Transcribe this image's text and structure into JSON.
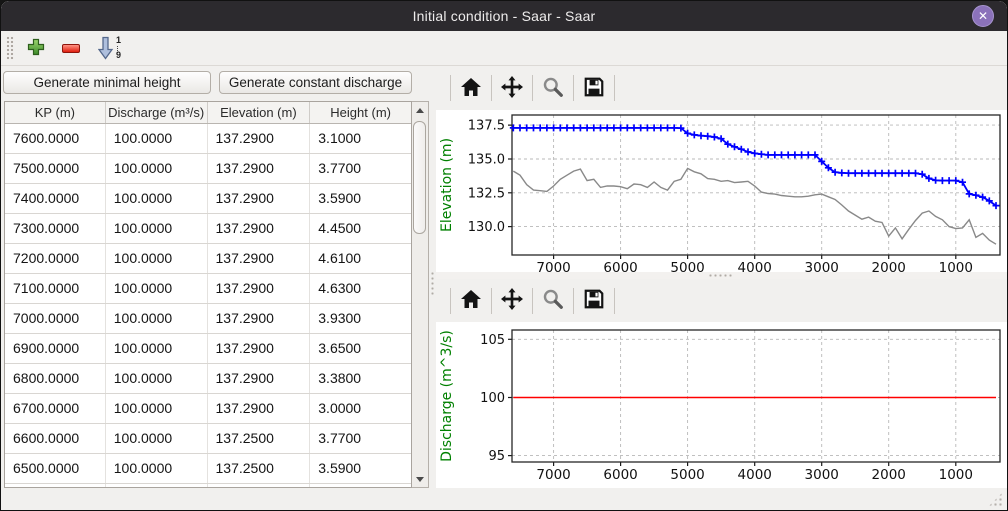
{
  "window": {
    "title": "Initial condition - Saar - Saar",
    "close_glyph": "✕"
  },
  "main_toolbar": {
    "add_icon": "plus-icon",
    "remove_icon": "minus-icon",
    "sort_icon": "sort-descending-1-9-icon",
    "sort_top": "1",
    "sort_bottom": "9"
  },
  "left_panel": {
    "buttons": [
      {
        "label": "Generate minimal height"
      },
      {
        "label": "Generate constant discharge"
      }
    ],
    "table": {
      "columns": [
        "KP (m)",
        "Discharge (m³/s)",
        "Elevation (m)",
        "Height (m)"
      ],
      "rows": [
        [
          "7600.0000",
          "100.0000",
          "137.2900",
          "3.1000"
        ],
        [
          "7500.0000",
          "100.0000",
          "137.2900",
          "3.7700"
        ],
        [
          "7400.0000",
          "100.0000",
          "137.2900",
          "3.5900"
        ],
        [
          "7300.0000",
          "100.0000",
          "137.2900",
          "4.4500"
        ],
        [
          "7200.0000",
          "100.0000",
          "137.2900",
          "4.6100"
        ],
        [
          "7100.0000",
          "100.0000",
          "137.2900",
          "4.6300"
        ],
        [
          "7000.0000",
          "100.0000",
          "137.2900",
          "3.9300"
        ],
        [
          "6900.0000",
          "100.0000",
          "137.2900",
          "3.6500"
        ],
        [
          "6800.0000",
          "100.0000",
          "137.2900",
          "3.3800"
        ],
        [
          "6700.0000",
          "100.0000",
          "137.2900",
          "3.0000"
        ],
        [
          "6600.0000",
          "100.0000",
          "137.2500",
          "3.7700"
        ],
        [
          "6500.0000",
          "100.0000",
          "137.2500",
          "3.5900"
        ]
      ]
    }
  },
  "right_panel": {
    "plot_toolbar_icons": [
      "home-icon",
      "move-icon",
      "magnifier-icon",
      "save-icon"
    ]
  },
  "colors": {
    "water_level_blue": "#0000ff",
    "bed_gray": "#898989",
    "discharge_red": "#ff0000",
    "axis_label_green": "#008000",
    "titlebar": "#2c2a2e",
    "close_button": "#8b72ba"
  },
  "chart_data": [
    {
      "type": "line",
      "title": "",
      "xlabel": "",
      "ylabel": "Elevation (m)",
      "x_reversed": true,
      "xlim": [
        7620,
        340
      ],
      "ylim": [
        127.9,
        138.25
      ],
      "xticks": [
        7000,
        6000,
        5000,
        4000,
        3000,
        2000,
        1000
      ],
      "xtick_labels": [
        "7000",
        "6000",
        "5000",
        "4000",
        "3000",
        "2000",
        "1000"
      ],
      "yticks": [
        130.0,
        132.5,
        135.0,
        137.5
      ],
      "ytick_labels": [
        "130.0",
        "132.5",
        "135.0",
        "137.5"
      ],
      "grid": true,
      "legend": false,
      "series": [
        {
          "name": "water-level-elevation",
          "color": "#0000ff",
          "marker": "plus",
          "width": 1.8,
          "points": [
            [
              7600,
              137.3
            ],
            [
              7500,
              137.3
            ],
            [
              7400,
              137.3
            ],
            [
              7300,
              137.3
            ],
            [
              7200,
              137.3
            ],
            [
              7100,
              137.3
            ],
            [
              7000,
              137.3
            ],
            [
              6900,
              137.3
            ],
            [
              6800,
              137.3
            ],
            [
              6700,
              137.3
            ],
            [
              6600,
              137.3
            ],
            [
              6500,
              137.3
            ],
            [
              6400,
              137.3
            ],
            [
              6300,
              137.3
            ],
            [
              6200,
              137.3
            ],
            [
              6100,
              137.3
            ],
            [
              6000,
              137.3
            ],
            [
              5900,
              137.3
            ],
            [
              5800,
              137.3
            ],
            [
              5700,
              137.3
            ],
            [
              5600,
              137.3
            ],
            [
              5500,
              137.3
            ],
            [
              5400,
              137.3
            ],
            [
              5300,
              137.3
            ],
            [
              5200,
              137.3
            ],
            [
              5100,
              137.28
            ],
            [
              5000,
              136.9
            ],
            [
              4900,
              136.78
            ],
            [
              4800,
              136.72
            ],
            [
              4700,
              136.68
            ],
            [
              4600,
              136.62
            ],
            [
              4500,
              136.5
            ],
            [
              4400,
              136.1
            ],
            [
              4300,
              135.9
            ],
            [
              4200,
              135.72
            ],
            [
              4100,
              135.52
            ],
            [
              4000,
              135.42
            ],
            [
              3900,
              135.35
            ],
            [
              3800,
              135.3
            ],
            [
              3700,
              135.3
            ],
            [
              3600,
              135.3
            ],
            [
              3500,
              135.3
            ],
            [
              3400,
              135.3
            ],
            [
              3300,
              135.3
            ],
            [
              3200,
              135.3
            ],
            [
              3100,
              135.3
            ],
            [
              3000,
              134.82
            ],
            [
              2900,
              134.35
            ],
            [
              2800,
              134.02
            ],
            [
              2700,
              133.97
            ],
            [
              2600,
              133.95
            ],
            [
              2500,
              133.95
            ],
            [
              2400,
              133.95
            ],
            [
              2300,
              133.95
            ],
            [
              2200,
              133.95
            ],
            [
              2100,
              133.95
            ],
            [
              2000,
              133.95
            ],
            [
              1900,
              133.95
            ],
            [
              1800,
              133.95
            ],
            [
              1700,
              133.95
            ],
            [
              1600,
              133.95
            ],
            [
              1500,
              133.87
            ],
            [
              1400,
              133.56
            ],
            [
              1300,
              133.42
            ],
            [
              1200,
              133.4
            ],
            [
              1100,
              133.4
            ],
            [
              1000,
              133.4
            ],
            [
              900,
              133.28
            ],
            [
              800,
              132.42
            ],
            [
              700,
              132.32
            ],
            [
              600,
              132.18
            ],
            [
              500,
              131.9
            ],
            [
              400,
              131.55
            ]
          ]
        },
        {
          "name": "bed-elevation",
          "color": "#898989",
          "marker": null,
          "width": 1.4,
          "points": [
            [
              7600,
              134.1
            ],
            [
              7500,
              133.8
            ],
            [
              7400,
              133.1
            ],
            [
              7300,
              132.7
            ],
            [
              7200,
              132.65
            ],
            [
              7100,
              132.6
            ],
            [
              7000,
              133.0
            ],
            [
              6900,
              133.5
            ],
            [
              6800,
              133.8
            ],
            [
              6700,
              134.1
            ],
            [
              6600,
              134.25
            ],
            [
              6500,
              133.4
            ],
            [
              6400,
              133.5
            ],
            [
              6300,
              132.9
            ],
            [
              6200,
              133.0
            ],
            [
              6100,
              133.0
            ],
            [
              6000,
              132.95
            ],
            [
              5900,
              132.8
            ],
            [
              5800,
              133.15
            ],
            [
              5700,
              133.1
            ],
            [
              5600,
              132.9
            ],
            [
              5500,
              133.3
            ],
            [
              5400,
              132.9
            ],
            [
              5300,
              132.7
            ],
            [
              5200,
              133.35
            ],
            [
              5100,
              133.5
            ],
            [
              5000,
              134.3
            ],
            [
              4900,
              134.05
            ],
            [
              4800,
              133.9
            ],
            [
              4700,
              133.55
            ],
            [
              4600,
              133.5
            ],
            [
              4500,
              133.35
            ],
            [
              4400,
              133.4
            ],
            [
              4300,
              133.25
            ],
            [
              4200,
              133.3
            ],
            [
              4100,
              133.35
            ],
            [
              4000,
              133.0
            ],
            [
              3900,
              132.55
            ],
            [
              3800,
              132.45
            ],
            [
              3700,
              132.4
            ],
            [
              3600,
              132.3
            ],
            [
              3500,
              132.25
            ],
            [
              3400,
              132.2
            ],
            [
              3300,
              132.2
            ],
            [
              3200,
              132.25
            ],
            [
              3100,
              132.35
            ],
            [
              3000,
              132.4
            ],
            [
              2900,
              132.2
            ],
            [
              2800,
              132.0
            ],
            [
              2700,
              131.6
            ],
            [
              2600,
              131.15
            ],
            [
              2500,
              130.85
            ],
            [
              2400,
              130.55
            ],
            [
              2300,
              130.7
            ],
            [
              2200,
              130.4
            ],
            [
              2100,
              130.3
            ],
            [
              2000,
              129.3
            ],
            [
              1900,
              129.9
            ],
            [
              1800,
              129.1
            ],
            [
              1700,
              129.8
            ],
            [
              1600,
              130.45
            ],
            [
              1500,
              131.0
            ],
            [
              1400,
              131.15
            ],
            [
              1300,
              130.75
            ],
            [
              1200,
              130.5
            ],
            [
              1100,
              130.0
            ],
            [
              1000,
              129.85
            ],
            [
              900,
              129.9
            ],
            [
              800,
              130.5
            ],
            [
              700,
              129.2
            ],
            [
              600,
              129.5
            ],
            [
              500,
              129.0
            ],
            [
              400,
              128.7
            ]
          ]
        }
      ]
    },
    {
      "type": "line",
      "title": "",
      "xlabel": "",
      "ylabel": "Discharge (m^3/s)",
      "x_reversed": true,
      "xlim": [
        7620,
        340
      ],
      "ylim": [
        94.45,
        105.8
      ],
      "xticks": [
        7000,
        6000,
        5000,
        4000,
        3000,
        2000,
        1000
      ],
      "xtick_labels": [
        "7000",
        "6000",
        "5000",
        "4000",
        "3000",
        "2000",
        "1000"
      ],
      "yticks": [
        95,
        100,
        105
      ],
      "ytick_labels": [
        "95",
        "100",
        "105"
      ],
      "grid": true,
      "legend": false,
      "series": [
        {
          "name": "constant-discharge",
          "color": "#ff0000",
          "marker": null,
          "width": 1.6,
          "points": [
            [
              7600,
              100
            ],
            [
              400,
              100
            ]
          ]
        }
      ]
    }
  ]
}
